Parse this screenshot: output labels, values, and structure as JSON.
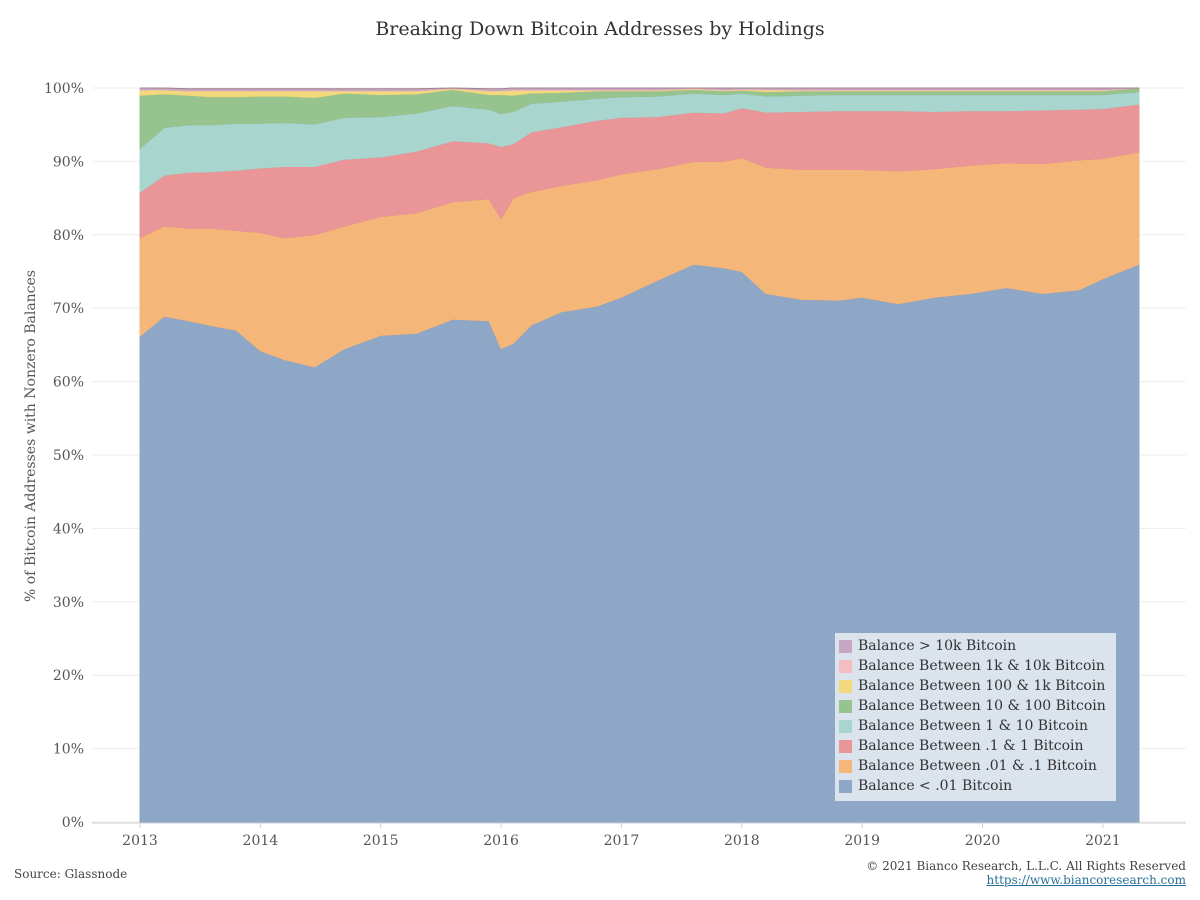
{
  "chart_data": {
    "type": "area",
    "stacked": true,
    "title": "Breaking Down Bitcoin Addresses by Holdings",
    "ylabel": "% of Bitcoin Addresses with Nonzero Balances",
    "xlabel": "",
    "ylim": [
      0,
      100
    ],
    "yticks": [
      "0%",
      "10%",
      "20%",
      "30%",
      "40%",
      "50%",
      "60%",
      "70%",
      "80%",
      "90%",
      "100%"
    ],
    "xticks": [
      "2013",
      "2014",
      "2015",
      "2016",
      "2017",
      "2018",
      "2019",
      "2020",
      "2021"
    ],
    "grid": true,
    "legend_position": "bottom-right",
    "x": [
      2013.0,
      2013.2,
      2013.4,
      2013.6,
      2013.8,
      2014.0,
      2014.2,
      2014.45,
      2014.7,
      2015.0,
      2015.3,
      2015.6,
      2015.9,
      2016.0,
      2016.1,
      2016.25,
      2016.5,
      2016.8,
      2017.0,
      2017.3,
      2017.6,
      2017.85,
      2018.0,
      2018.2,
      2018.5,
      2018.8,
      2019.0,
      2019.3,
      2019.6,
      2019.9,
      2020.2,
      2020.5,
      2020.8,
      2021.0,
      2021.3
    ],
    "series": [
      {
        "name": "Balance < .01 Bitcoin",
        "color": "#8ea7c6",
        "values": [
          66.2,
          68.9,
          68.3,
          67.6,
          67.0,
          64.2,
          63.0,
          62.0,
          64.5,
          66.3,
          66.6,
          68.5,
          68.3,
          64.5,
          65.2,
          67.7,
          69.5,
          70.3,
          71.5,
          73.8,
          76.0,
          75.5,
          75.0,
          72.0,
          71.2,
          71.1,
          71.5,
          70.6,
          71.5,
          72.0,
          72.8,
          72.0,
          72.5,
          74.0,
          76.0
        ]
      },
      {
        "name": "Balance Between .01 & .1 Bitcoin",
        "color": "#f5b67a",
        "values": [
          13.4,
          12.3,
          12.6,
          13.3,
          13.6,
          16.1,
          16.6,
          18.0,
          16.7,
          16.2,
          16.4,
          16.0,
          16.6,
          17.7,
          19.8,
          18.2,
          17.2,
          17.2,
          16.8,
          15.2,
          14.0,
          14.5,
          15.5,
          17.2,
          17.7,
          17.8,
          17.4,
          18.1,
          17.5,
          17.5,
          17.0,
          17.7,
          17.7,
          16.4,
          15.3
        ]
      },
      {
        "name": "Balance Between .1 & 1 Bitcoin",
        "color": "#ea9597",
        "values": [
          6.2,
          6.9,
          7.6,
          7.7,
          8.2,
          8.8,
          9.7,
          9.3,
          9.1,
          8.1,
          8.4,
          8.3,
          7.6,
          9.8,
          7.4,
          8.1,
          8.0,
          8.1,
          7.7,
          7.1,
          6.7,
          6.6,
          6.8,
          7.5,
          7.9,
          8.0,
          8.0,
          8.2,
          7.8,
          7.4,
          7.1,
          7.3,
          6.9,
          6.8,
          6.5
        ]
      },
      {
        "name": "Balance Between 1 & 10 Bitcoin",
        "color": "#a9d5cf",
        "values": [
          6.0,
          6.5,
          6.5,
          6.4,
          6.4,
          6.1,
          6.0,
          5.8,
          5.7,
          5.5,
          5.2,
          4.8,
          4.6,
          4.5,
          4.4,
          3.9,
          3.5,
          3.0,
          2.8,
          2.8,
          2.6,
          2.5,
          2.0,
          2.2,
          2.2,
          2.2,
          2.2,
          2.2,
          2.3,
          2.2,
          2.2,
          2.1,
          2.0,
          1.9,
          1.7
        ]
      },
      {
        "name": "Balance Between 10 & 100 Bitcoin",
        "color": "#96c38e",
        "values": [
          7.2,
          4.6,
          4.0,
          3.8,
          3.6,
          3.7,
          3.6,
          3.6,
          3.3,
          3.0,
          2.6,
          2.2,
          2.0,
          2.6,
          2.2,
          1.4,
          1.2,
          1.0,
          0.8,
          0.7,
          0.5,
          0.5,
          0.4,
          0.6,
          0.6,
          0.5,
          0.5,
          0.5,
          0.5,
          0.5,
          0.5,
          0.5,
          0.5,
          0.5,
          0.5
        ]
      },
      {
        "name": "Balance Between 100 & 1k Bitcoin",
        "color": "#f2d97d",
        "values": [
          0.7,
          0.55,
          0.6,
          0.8,
          0.8,
          0.7,
          0.7,
          0.9,
          0.3,
          0.5,
          0.4,
          0.1,
          0.5,
          0.5,
          0.7,
          0.4,
          0.3,
          0.1,
          0.1,
          0.1,
          0.1,
          0.1,
          0.1,
          0.25,
          0.1,
          0.1,
          0.1,
          0.1,
          0.1,
          0.1,
          0.1,
          0.1,
          0.1,
          0.1,
          0.1
        ]
      },
      {
        "name": "Balance Between 1k & 10k Bitcoin",
        "color": "#f5bcc2",
        "values": [
          0.1,
          0.05,
          0.1,
          0.1,
          0.1,
          0.1,
          0.1,
          0.1,
          0.1,
          0.1,
          0.1,
          0.1,
          0.1,
          0.1,
          0.1,
          0.1,
          0.1,
          0.1,
          0.1,
          0.1,
          0.1,
          0.1,
          0.1,
          0.1,
          0.1,
          0.1,
          0.1,
          0.1,
          0.1,
          0.1,
          0.1,
          0.1,
          0.1,
          0.1,
          0.1
        ]
      },
      {
        "name": "Balance > 10k Bitcoin",
        "color": "#c7a6c5",
        "values": [
          0.2,
          0.2,
          0.2,
          0.2,
          0.2,
          0.2,
          0.2,
          0.2,
          0.2,
          0.2,
          0.2,
          0.2,
          0.2,
          0.2,
          0.2,
          0.2,
          0.2,
          0.2,
          0.2,
          0.2,
          0.2,
          0.2,
          0.2,
          0.2,
          0.2,
          0.2,
          0.2,
          0.2,
          0.2,
          0.2,
          0.2,
          0.2,
          0.2,
          0.2,
          0.2
        ]
      }
    ]
  },
  "legend": {
    "items": [
      {
        "label": "Balance > 10k Bitcoin",
        "color": "#c7a6c5"
      },
      {
        "label": "Balance Between 1k & 10k Bitcoin",
        "color": "#f5bcc2"
      },
      {
        "label": "Balance Between 100 & 1k Bitcoin",
        "color": "#f2d97d"
      },
      {
        "label": "Balance Between 10 & 100 Bitcoin",
        "color": "#96c38e"
      },
      {
        "label": "Balance Between 1 & 10 Bitcoin",
        "color": "#a9d5cf"
      },
      {
        "label": "Balance Between .1 & 1 Bitcoin",
        "color": "#ea9597"
      },
      {
        "label": "Balance Between .01 & .1 Bitcoin",
        "color": "#f5b67a"
      },
      {
        "label": "Balance < .01 Bitcoin",
        "color": "#8ea7c6"
      }
    ]
  },
  "footer": {
    "source": "Source: Glassnode",
    "copyright": "© 2021 Bianco Research, L.L.C. All Rights Reserved",
    "link": "https://www.biancoresearch.com"
  }
}
